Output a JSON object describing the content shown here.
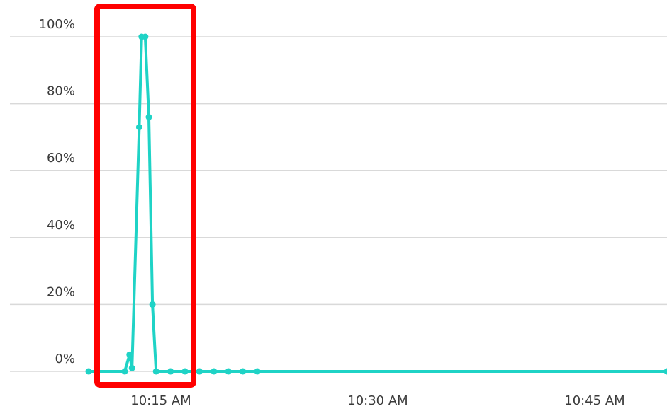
{
  "chart_data": {
    "type": "line",
    "color": "#1fd3c6",
    "grid": true,
    "x": [
      "10:10:00 AM",
      "10:12:30 AM",
      "10:12:50 AM",
      "10:13:00 AM",
      "10:13:30 AM",
      "10:13:40 AM",
      "10:13:55 AM",
      "10:14:10 AM",
      "10:14:25 AM",
      "10:14:40 AM",
      "10:15:40 AM",
      "10:16:40 AM",
      "10:17:40 AM",
      "10:18:40 AM",
      "10:19:40 AM",
      "10:20:40 AM",
      "10:21:40 AM",
      "10:50:00 AM"
    ],
    "values": [
      0,
      0,
      5,
      1,
      73,
      100,
      100,
      76,
      20,
      0,
      0,
      0,
      0,
      0,
      0,
      0,
      0,
      0
    ],
    "xlim": [
      "10:10 AM",
      "10:50 AM"
    ],
    "xticks": [
      "10:15 AM",
      "10:30 AM",
      "10:45 AM"
    ],
    "ylim": [
      0,
      100
    ],
    "yticks": [
      {
        "value": 0,
        "label": "0%"
      },
      {
        "value": 20,
        "label": "20%"
      },
      {
        "value": 40,
        "label": "40%"
      },
      {
        "value": 60,
        "label": "60%"
      },
      {
        "value": 80,
        "label": "80%"
      },
      {
        "value": 100,
        "label": "100%"
      }
    ]
  }
}
